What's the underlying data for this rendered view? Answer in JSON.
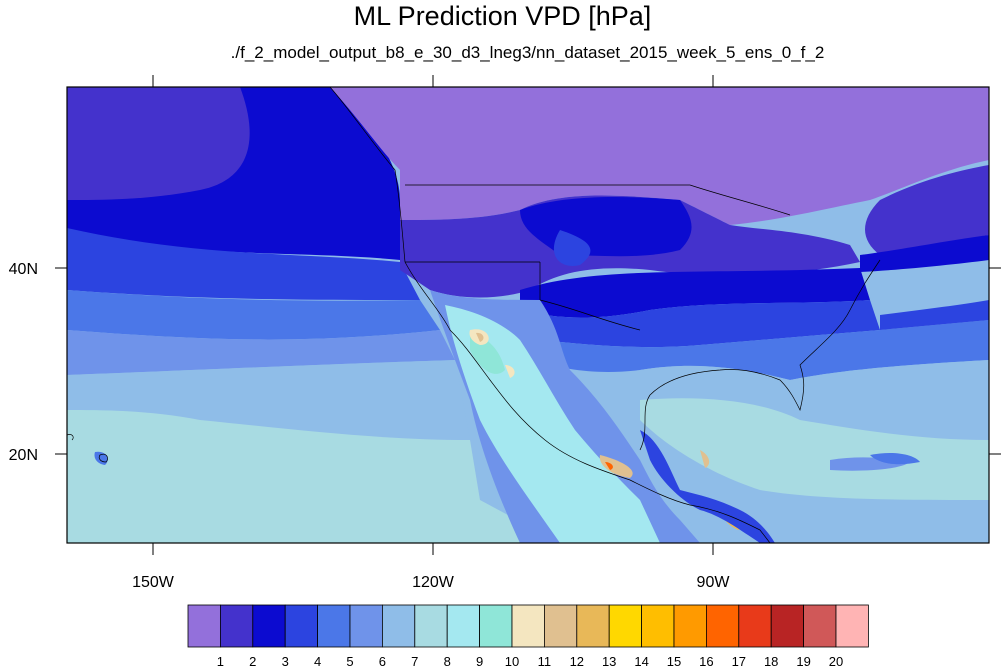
{
  "map": {
    "title": "ML Prediction VPD [hPa]",
    "subtitle": "./f_2_model_output_b8_e_30_d3_lneg3/nn_dataset_2015_week_5_ens_0_f_2",
    "lon_ticks": [
      "150W",
      "120W",
      "90W"
    ],
    "lat_ticks": [
      "40N",
      "20N"
    ]
  },
  "colorbar": {
    "labels": [
      "1",
      "2",
      "3",
      "4",
      "5",
      "6",
      "7",
      "8",
      "9",
      "10",
      "11",
      "12",
      "13",
      "14",
      "15",
      "16",
      "17",
      "18",
      "19",
      "20"
    ],
    "colors": [
      "#9370db",
      "#4432cc",
      "#0c0bd0",
      "#2c44e0",
      "#4b77e8",
      "#6f93ea",
      "#8fbde8",
      "#a8dbe2",
      "#a4e8f0",
      "#8fe6d8",
      "#f4e6c0",
      "#e0c090",
      "#e8b858",
      "#ffd800",
      "#ffbe00",
      "#ff9a00",
      "#ff6400",
      "#e83a1a",
      "#b82424",
      "#d05858",
      "#ffb4b4"
    ]
  }
}
